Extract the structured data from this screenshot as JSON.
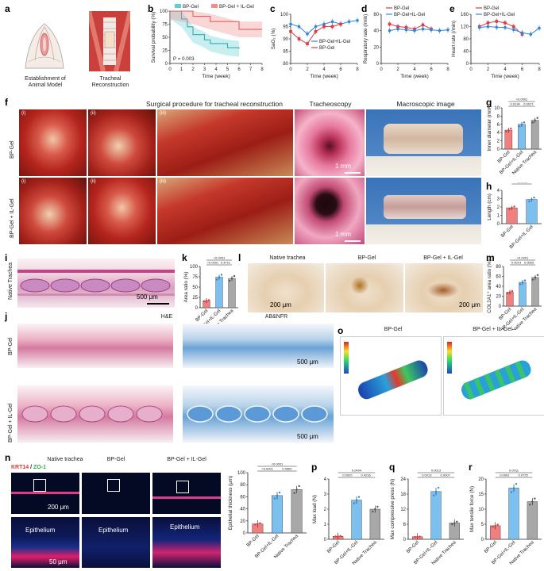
{
  "panel_letters": [
    "a",
    "b",
    "c",
    "d",
    "e",
    "f",
    "g",
    "h",
    "i",
    "j",
    "k",
    "l",
    "m",
    "n",
    "o",
    "p",
    "q",
    "r"
  ],
  "a": {
    "caption1": "Establishment of",
    "caption2": "Animal Model",
    "caption3": "Tracheal",
    "caption4": "Reconstruction"
  },
  "f": {
    "title": "Surgical procedure for tracheal reconstruction",
    "tracheoscopy": "Tracheoscopy",
    "macroscopic": "Macroscopic image",
    "row1": "BP-Gel",
    "row2": "BP-Gel + IL-Gel",
    "steps": [
      "(i)",
      "(ii)",
      "(iii)"
    ],
    "scale": "1 mm"
  },
  "i": {
    "row": "Native Trachea",
    "scale": "500 μm"
  },
  "j": {
    "he": "H&E",
    "ab": "AB&NFR",
    "row1": "BP-Gel",
    "row2": "BP-Gel + IL-Gel",
    "scale": "500 μm"
  },
  "l": {
    "cols": [
      "Native trachea",
      "BP-Gel",
      "BP-Gel + IL-Gel"
    ],
    "scale": "200 μm"
  },
  "n": {
    "legend_a": "KRT14",
    "legend_sep": " / ",
    "legend_b": "ZO-1",
    "cols": [
      "Native trachea",
      "BP-Gel",
      "BP-Gel + IL-Gel"
    ],
    "scale_top": "200 μm",
    "scale_bottom": "50 μm",
    "epi": "Epithelium"
  },
  "o": {
    "cols": [
      "BP-Gel",
      "BP-Gel + IL-Gel"
    ]
  },
  "colors": {
    "red": "#e0393e",
    "blue": "#2e86de",
    "teal": "#5fd0d5",
    "pink": "#f28b8b",
    "gray": "#555555",
    "bar_red": "#f08080",
    "bar_blue": "#7cc0f0",
    "bar_gray": "#a8a8a8"
  },
  "chart_data": [
    {
      "id": "b",
      "type": "line",
      "title": "",
      "xlabel": "Time (week)",
      "ylabel": "Survival probability (%)",
      "xlim": [
        0,
        8
      ],
      "ylim": [
        0,
        100
      ],
      "xticks": [
        0,
        1,
        2,
        3,
        4,
        5,
        6,
        7,
        8
      ],
      "yticks": [
        0,
        25,
        50,
        75,
        100
      ],
      "legend": [
        "BP-Gel",
        "BP-Gel + IL-Gel"
      ],
      "annotation": "P = 0.003",
      "series": [
        {
          "name": "BP-Gel",
          "x": [
            0,
            1,
            1.5,
            2,
            3,
            3.5,
            5,
            6
          ],
          "y": [
            100,
            85,
            70,
            55,
            45,
            38,
            30,
            28
          ]
        },
        {
          "name": "BP-Gel + IL-Gel",
          "x": [
            0,
            2,
            3.5,
            6,
            8
          ],
          "y": [
            100,
            90,
            80,
            65,
            65
          ]
        }
      ]
    },
    {
      "id": "c",
      "type": "line",
      "xlabel": "Time (week)",
      "ylabel": "SaO₂ (%)",
      "xlim": [
        0,
        8
      ],
      "ylim": [
        80,
        100
      ],
      "xticks": [
        0,
        2,
        4,
        6,
        8
      ],
      "yticks": [
        80,
        85,
        90,
        95,
        100
      ],
      "legend": [
        "BP-Gel+IL-Gel",
        "BP-Gel"
      ],
      "series": [
        {
          "name": "BP-Gel+IL-Gel",
          "x": [
            0,
            1,
            2,
            3,
            4,
            5,
            6,
            7,
            8
          ],
          "y": [
            96,
            95,
            92,
            95,
            96,
            97,
            96,
            97,
            97.5
          ]
        },
        {
          "name": "BP-Gel",
          "x": [
            0,
            1,
            2,
            3,
            4,
            5,
            6
          ],
          "y": [
            93,
            90,
            88,
            93,
            95,
            95,
            96
          ]
        }
      ]
    },
    {
      "id": "d",
      "type": "line",
      "xlabel": "Time (week)",
      "ylabel": "Respiratory rate (/min)",
      "xlim": [
        0,
        8
      ],
      "ylim": [
        0,
        60
      ],
      "xticks": [
        0,
        2,
        4,
        6,
        8
      ],
      "yticks": [
        0,
        20,
        40,
        60
      ],
      "legend": [
        "BP-Gel",
        "BP-Gel+IL-Gel"
      ],
      "series": [
        {
          "name": "BP-Gel",
          "x": [
            1,
            2,
            3,
            4,
            5,
            6
          ],
          "y": [
            48,
            45,
            44,
            42,
            47,
            42
          ]
        },
        {
          "name": "BP-Gel+IL-Gel",
          "x": [
            1,
            2,
            3,
            4,
            5,
            6,
            7,
            8
          ],
          "y": [
            40,
            42,
            41,
            40,
            42,
            41,
            40,
            41
          ]
        }
      ]
    },
    {
      "id": "e",
      "type": "line",
      "xlabel": "Time (week)",
      "ylabel": "Heart rate (/min)",
      "xlim": [
        0,
        8
      ],
      "ylim": [
        0,
        160
      ],
      "xticks": [
        0,
        2,
        4,
        6,
        8
      ],
      "yticks": [
        0,
        40,
        80,
        120,
        160
      ],
      "legend": [
        "BP-Gel",
        "BP-Gel+IL-Gel"
      ],
      "series": [
        {
          "name": "BP-Gel",
          "x": [
            1,
            2,
            3,
            4,
            5,
            6
          ],
          "y": [
            120,
            132,
            137,
            132,
            120,
            95
          ]
        },
        {
          "name": "BP-Gel+IL-Gel",
          "x": [
            1,
            2,
            3,
            4,
            5,
            6,
            7,
            8
          ],
          "y": [
            117,
            120,
            118,
            117,
            110,
            100,
            95,
            115
          ]
        }
      ]
    },
    {
      "id": "g",
      "type": "bar",
      "ylabel": "Inner diameter (mm)",
      "ylim": [
        0,
        10
      ],
      "yticks": [
        0,
        2,
        4,
        6,
        8,
        10
      ],
      "categories": [
        "BP-Gel",
        "BP-Gel+IL-Gel",
        "Native Trachea"
      ],
      "values": [
        4.6,
        6.0,
        7.0
      ],
      "pvals": [
        "<0.0001",
        "0.0134",
        "0.0017"
      ]
    },
    {
      "id": "h",
      "type": "bar",
      "ylabel": "Length (cm)",
      "ylim": [
        0,
        4
      ],
      "yticks": [
        0,
        1,
        2,
        3,
        4
      ],
      "categories": [
        "BP-Gel",
        "BP-Gel+IL-Gel"
      ],
      "values": [
        1.9,
        2.9
      ],
      "pvals": [
        "<0.0001"
      ]
    },
    {
      "id": "k",
      "type": "bar",
      "ylabel": "Area ratio (%)",
      "ylim": [
        0,
        100
      ],
      "yticks": [
        0,
        25,
        50,
        75,
        100
      ],
      "categories": [
        "BP-Gel",
        "BP-Gel+IL-Gel",
        "Native Trachea"
      ],
      "values": [
        17,
        74,
        71
      ],
      "pvals": [
        "<0.0001",
        "<0.0001",
        "0.4721"
      ]
    },
    {
      "id": "m",
      "type": "bar",
      "ylabel": "COL2A1⁺ area ratio (%)",
      "ylim": [
        0,
        80
      ],
      "yticks": [
        0,
        20,
        40,
        60,
        80
      ],
      "categories": [
        "BP-Gel",
        "BP-Gel+IL-Gel",
        "Native Trachea"
      ],
      "values": [
        28,
        48,
        58
      ],
      "pvals": [
        "<0.0001",
        "0.0014",
        "0.0559"
      ]
    },
    {
      "id": "n",
      "type": "bar",
      "ylabel": "Epithelial thickness (μm)",
      "ylim": [
        0,
        100
      ],
      "yticks": [
        0,
        20,
        40,
        60,
        80,
        100
      ],
      "categories": [
        "BP-Gel",
        "BP-Gel+IL-Gel",
        "Native Trachea"
      ],
      "values": [
        15,
        62,
        72
      ],
      "pvals": [
        "<0.0001",
        "<0.0001",
        "0.4669"
      ]
    },
    {
      "id": "p",
      "type": "bar",
      "ylabel": "Max load (N)",
      "ylim": [
        0,
        4
      ],
      "yticks": [
        0,
        1,
        2,
        3,
        4
      ],
      "categories": [
        "BP-Gel",
        "BP-Gel+IL-Gel",
        "Native Trachea"
      ],
      "values": [
        0.2,
        2.6,
        2.0
      ],
      "pvals": [
        "0.0404",
        "0.0020",
        "0.4216"
      ]
    },
    {
      "id": "q",
      "type": "bar",
      "ylabel": "Max compressive press (N)",
      "ylim": [
        0,
        24
      ],
      "yticks": [
        0,
        6,
        12,
        18,
        24
      ],
      "categories": [
        "BP-Gel",
        "BP-Gel+IL-Gel",
        "Native Trachea"
      ],
      "values": [
        1.0,
        19.0,
        6.5
      ],
      "pvals": [
        "0.0013",
        "0.0013",
        "0.0007"
      ]
    },
    {
      "id": "r",
      "type": "bar",
      "ylabel": "Max tensile force (N)",
      "ylim": [
        0,
        20
      ],
      "yticks": [
        0,
        5,
        10,
        15,
        20
      ],
      "categories": [
        "BP-Gel",
        "BP-Gel+IL-Gel",
        "Native Trachea"
      ],
      "values": [
        4.5,
        17.0,
        12.5
      ],
      "pvals": [
        "0.0011",
        "0.0002",
        "0.0725"
      ]
    }
  ]
}
